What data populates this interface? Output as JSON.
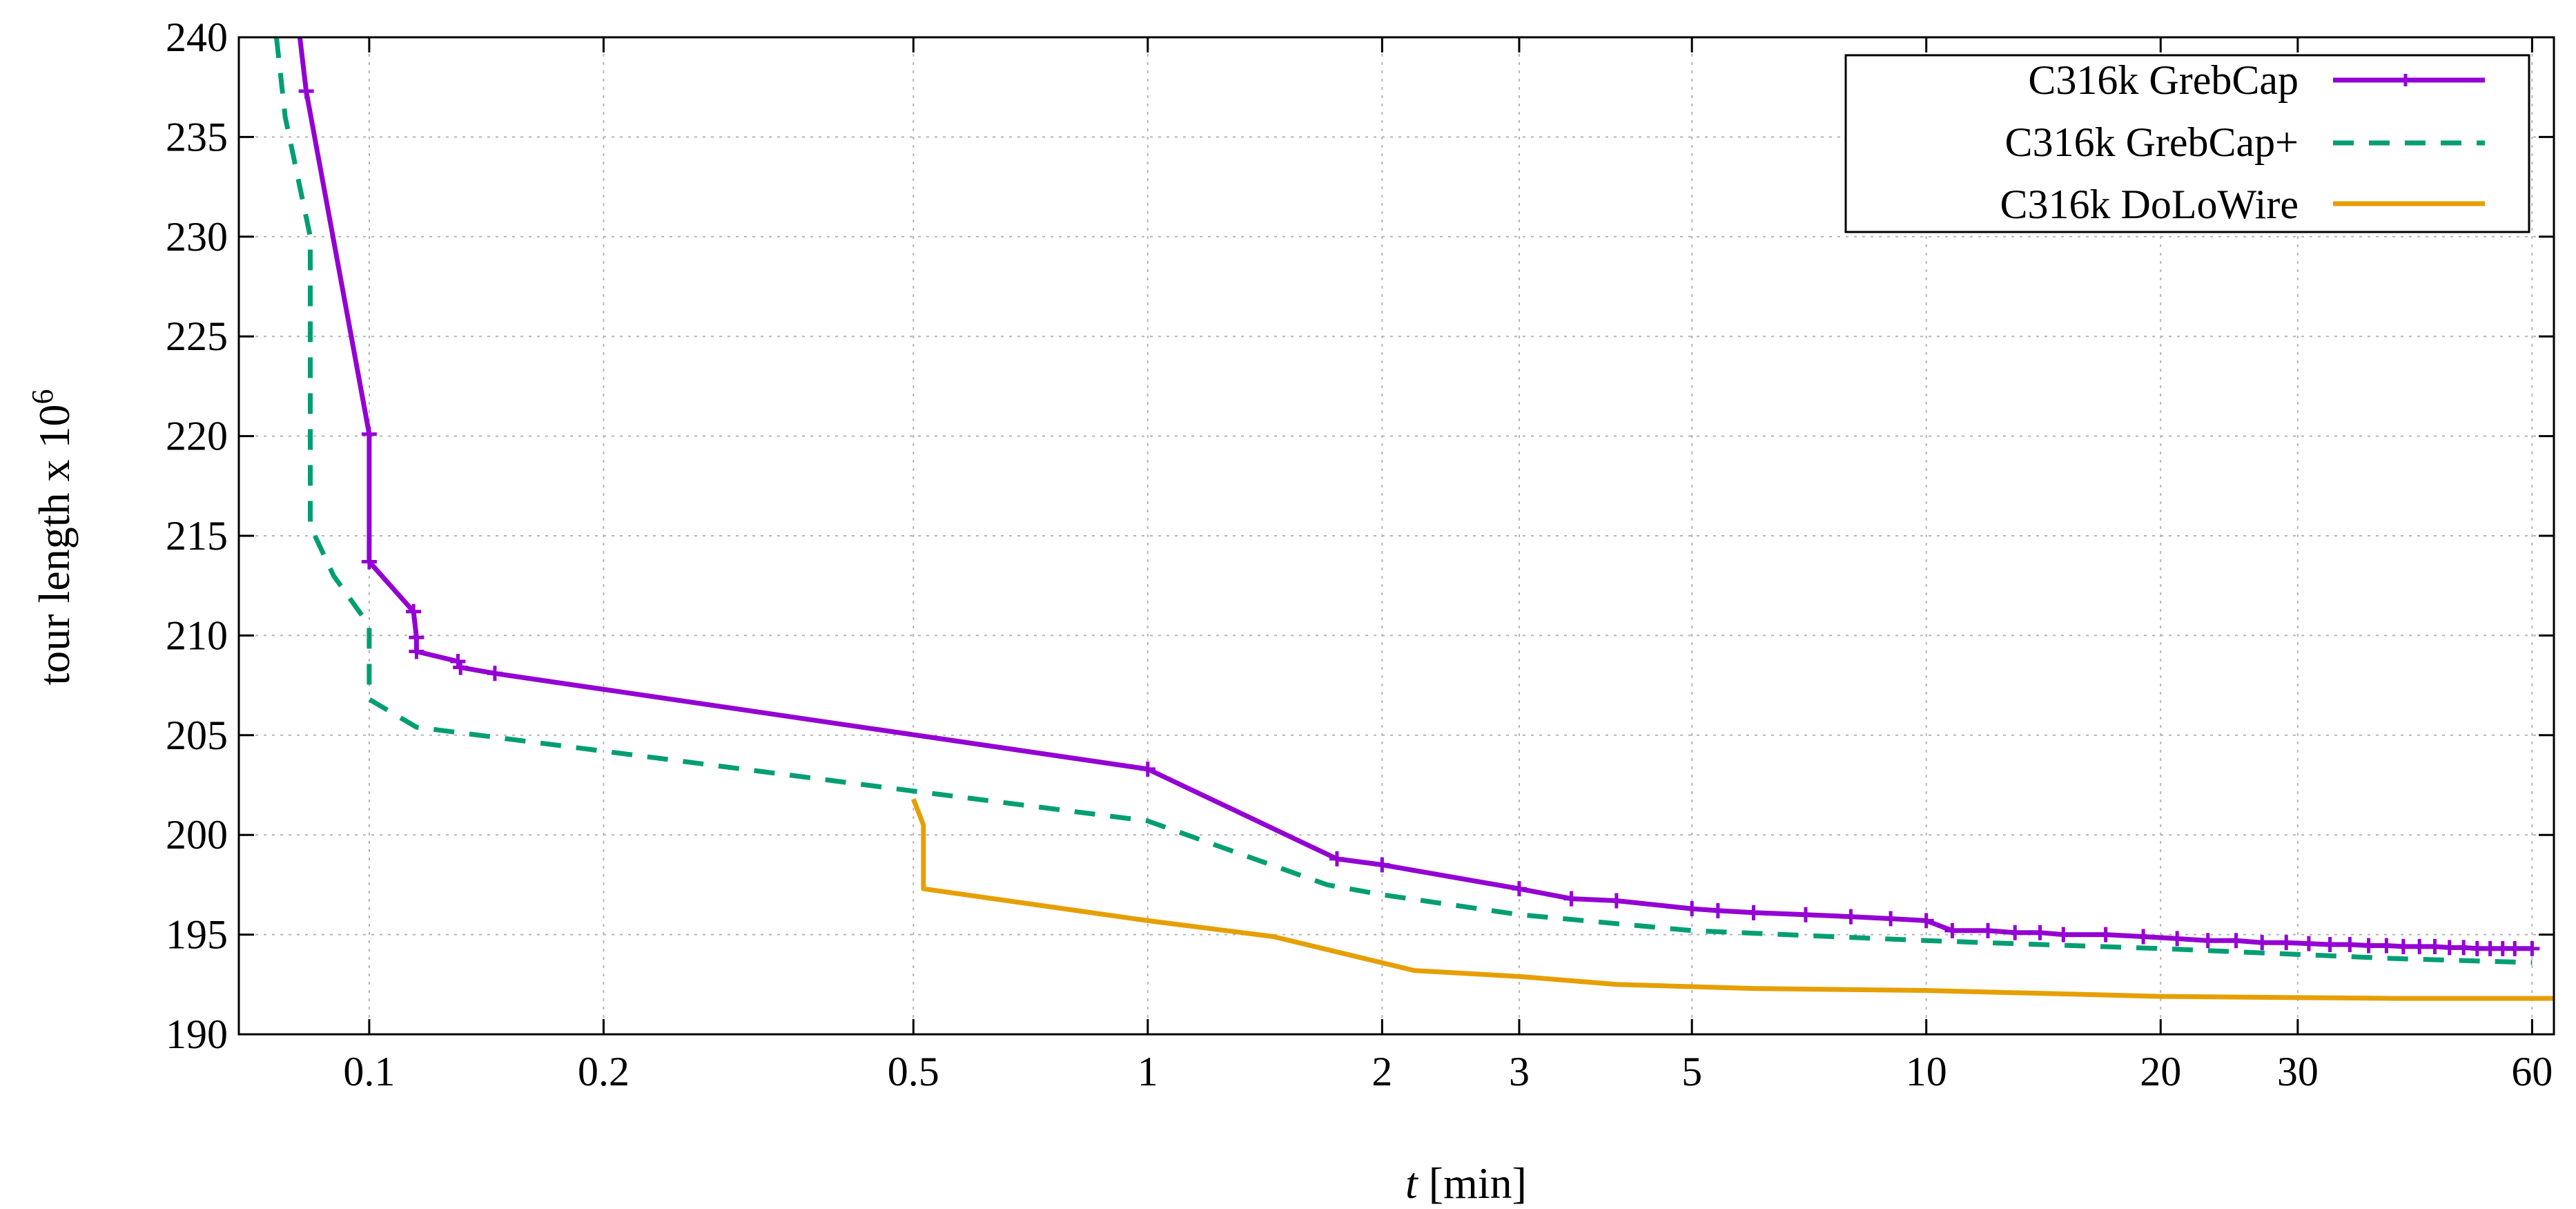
{
  "chart_data": {
    "type": "line",
    "title": "",
    "xlabel_italic": "t",
    "xlabel_rest": " [min]",
    "ylabel_base": "tour length x 10",
    "ylabel_exp": "6",
    "xscale": "log",
    "xlim": [
      0.068,
      64
    ],
    "ylim": [
      190,
      240
    ],
    "grid": true,
    "legend_position": "top-right",
    "x_ticks": [
      0.1,
      0.2,
      0.5,
      1,
      2,
      3,
      5,
      10,
      20,
      30,
      60
    ],
    "x_tick_labels": [
      "0.1",
      "0.2",
      "0.5",
      "1",
      "2",
      "3",
      "5",
      "10",
      "20",
      "30",
      "60"
    ],
    "y_ticks": [
      190,
      195,
      200,
      205,
      210,
      215,
      220,
      225,
      230,
      235,
      240
    ],
    "y_tick_labels": [
      "190",
      "195",
      "200",
      "205",
      "210",
      "215",
      "220",
      "225",
      "230",
      "235",
      "240"
    ],
    "series": [
      {
        "name": "C316k GrebCap",
        "color": "#9400d3",
        "style": "solid",
        "markers": "plus",
        "points": [
          [
            0.081,
            240.8
          ],
          [
            0.083,
            237.3
          ],
          [
            0.1,
            220.1
          ],
          [
            0.1,
            213.7
          ],
          [
            0.114,
            211.2
          ],
          [
            0.115,
            209.9
          ],
          [
            0.115,
            209.2
          ],
          [
            0.13,
            208.7
          ],
          [
            0.131,
            208.4
          ],
          [
            0.145,
            208.1
          ],
          [
            1.0,
            203.3
          ],
          [
            1.75,
            198.8
          ],
          [
            2.0,
            198.5
          ],
          [
            3.0,
            197.3
          ],
          [
            3.5,
            196.8
          ],
          [
            4.0,
            196.7
          ],
          [
            5.0,
            196.3
          ],
          [
            5.4,
            196.2
          ],
          [
            6.0,
            196.1
          ],
          [
            7.0,
            196.0
          ],
          [
            8.0,
            195.9
          ],
          [
            9.0,
            195.8
          ],
          [
            10.0,
            195.7
          ],
          [
            10.8,
            195.2
          ],
          [
            12.0,
            195.2
          ],
          [
            13.0,
            195.1
          ],
          [
            14.0,
            195.1
          ],
          [
            15.0,
            195.0
          ],
          [
            17.0,
            195.0
          ],
          [
            19.0,
            194.9
          ],
          [
            21.0,
            194.8
          ],
          [
            23.0,
            194.7
          ],
          [
            25.0,
            194.7
          ],
          [
            27.0,
            194.6
          ],
          [
            29.0,
            194.6
          ],
          [
            31.0,
            194.55
          ],
          [
            33.0,
            194.5
          ],
          [
            35.0,
            194.5
          ],
          [
            37.0,
            194.45
          ],
          [
            39.0,
            194.45
          ],
          [
            41.0,
            194.4
          ],
          [
            43.0,
            194.4
          ],
          [
            45.0,
            194.4
          ],
          [
            47.0,
            194.35
          ],
          [
            49.0,
            194.35
          ],
          [
            51.0,
            194.3
          ],
          [
            53.0,
            194.3
          ],
          [
            55.0,
            194.3
          ],
          [
            57.0,
            194.3
          ],
          [
            60.0,
            194.3
          ]
        ]
      },
      {
        "name": "C316k GrebCap+",
        "color": "#009e73",
        "style": "dashed",
        "markers": "none",
        "points": [
          [
            0.076,
            240.0
          ],
          [
            0.078,
            236.0
          ],
          [
            0.084,
            230.0
          ],
          [
            0.084,
            215.5
          ],
          [
            0.09,
            213.0
          ],
          [
            0.1,
            210.5
          ],
          [
            0.1,
            206.8
          ],
          [
            0.115,
            205.4
          ],
          [
            0.2,
            204.2
          ],
          [
            0.5,
            202.2
          ],
          [
            1.0,
            200.7
          ],
          [
            1.7,
            197.5
          ],
          [
            2.0,
            197.0
          ],
          [
            3.0,
            196.0
          ],
          [
            5.0,
            195.2
          ],
          [
            10.0,
            194.7
          ],
          [
            20.0,
            194.3
          ],
          [
            40.0,
            193.8
          ],
          [
            60.0,
            193.6
          ]
        ]
      },
      {
        "name": "C316k DoLoWire",
        "color": "#e69f00",
        "style": "solid",
        "markers": "none",
        "points": [
          [
            0.5,
            201.8
          ],
          [
            0.515,
            200.5
          ],
          [
            0.515,
            197.3
          ],
          [
            1.0,
            195.7
          ],
          [
            1.45,
            194.9
          ],
          [
            2.2,
            193.2
          ],
          [
            3.0,
            192.9
          ],
          [
            4.0,
            192.5
          ],
          [
            6.0,
            192.3
          ],
          [
            10.0,
            192.2
          ],
          [
            20.0,
            191.9
          ],
          [
            40.0,
            191.8
          ],
          [
            64.0,
            191.8
          ]
        ]
      }
    ]
  }
}
